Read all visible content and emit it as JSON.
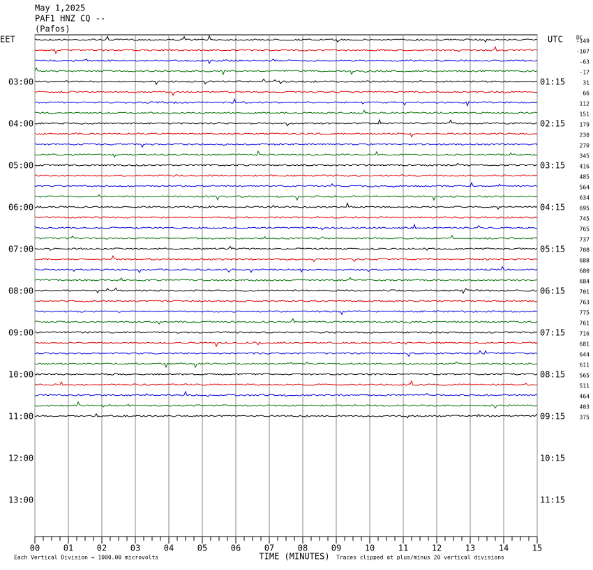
{
  "header": {
    "date": "May 1,2025",
    "station": "PAF1 HNZ CQ --",
    "place": "(Pafos)"
  },
  "left_zone": "EET",
  "left_hours": [
    "03:00",
    "04:00",
    "05:00",
    "06:00",
    "07:00",
    "08:00",
    "09:00",
    "10:00",
    "11:00",
    "12:00",
    "13:00"
  ],
  "right_zone": "UTC",
  "right_hours": [
    "01:15",
    "02:15",
    "03:15",
    "04:15",
    "05:15",
    "06:15",
    "07:15",
    "08:15",
    "09:15",
    "10:15",
    "11:15"
  ],
  "dc_label": "DC",
  "dc_values": [
    -149,
    -107,
    -63,
    -17,
    31,
    66,
    112,
    151,
    179,
    230,
    270,
    345,
    416,
    485,
    564,
    634,
    695,
    745,
    765,
    737,
    708,
    688,
    680,
    684,
    701,
    763,
    775,
    761,
    716,
    681,
    644,
    611,
    565,
    511,
    464,
    403,
    375
  ],
  "trace_colors": [
    "#000000",
    "#e00000",
    "#0000e0",
    "#007000"
  ],
  "x_labels": [
    "00",
    "01",
    "02",
    "03",
    "04",
    "05",
    "06",
    "07",
    "08",
    "09",
    "10",
    "11",
    "12",
    "13",
    "14",
    "15"
  ],
  "x_title": "TIME (MINUTES)",
  "scale_note": "Each Vertical Division = 1000.00 microvolts",
  "clip_note": "Traces clipped at plus/minus 20 vertical divisions"
}
